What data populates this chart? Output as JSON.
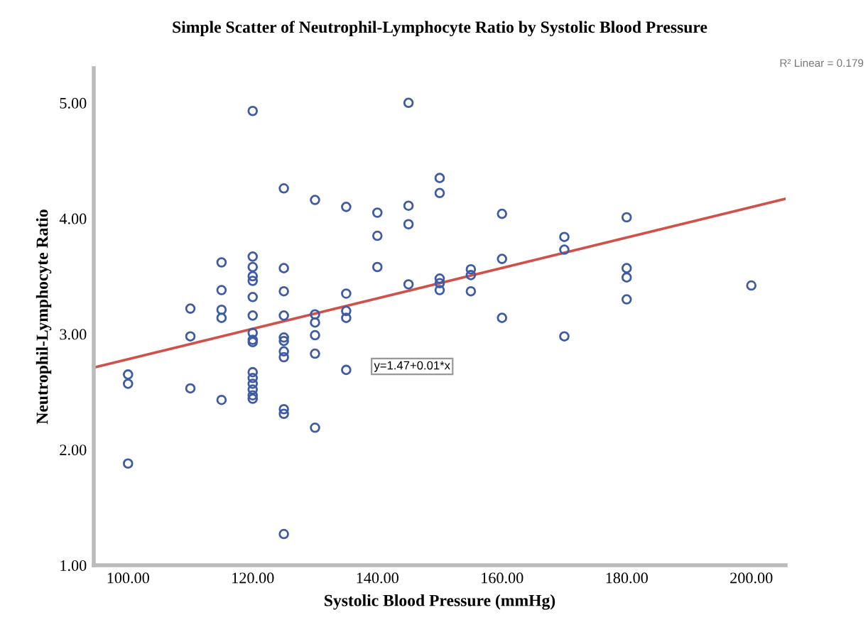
{
  "chart_data": {
    "type": "scatter",
    "title": "Simple Scatter of Neutrophil-Lymphocyte Ratio by Systolic Blood Pressure",
    "xlabel": "Systolic Blood Pressure (mmHg)",
    "ylabel": "Neutrophil-Lymphocyte Ratio",
    "xlim": [
      94.5,
      205.5
    ],
    "ylim": [
      1,
      5.3
    ],
    "xticks": [
      {
        "value": 100,
        "label": "100.00"
      },
      {
        "value": 120,
        "label": "120.00"
      },
      {
        "value": 140,
        "label": "140.00"
      },
      {
        "value": 160,
        "label": "160.00"
      },
      {
        "value": 180,
        "label": "180.00"
      },
      {
        "value": 200,
        "label": "200.00"
      }
    ],
    "yticks": [
      {
        "value": 1,
        "label": "1.00"
      },
      {
        "value": 2,
        "label": "2.00"
      },
      {
        "value": 3,
        "label": "3.00"
      },
      {
        "value": 4,
        "label": "4.00"
      },
      {
        "value": 5,
        "label": "5.00"
      }
    ],
    "grid": false,
    "legend": false,
    "marker": "circle",
    "series": [
      {
        "color": "#3f5ba6",
        "x": [
          100,
          100,
          100,
          110,
          110,
          110,
          115,
          115,
          115,
          115,
          115,
          120,
          120,
          120,
          120,
          120,
          120,
          120,
          120,
          120,
          120,
          120,
          120,
          120,
          120,
          120,
          120,
          125,
          125,
          125,
          125,
          125,
          125,
          125,
          125,
          125,
          125,
          125,
          130,
          130,
          130,
          130,
          130,
          130,
          135,
          135,
          135,
          135,
          135,
          140,
          140,
          140,
          145,
          145,
          145,
          145,
          150,
          150,
          150,
          150,
          150,
          155,
          155,
          155,
          160,
          160,
          160,
          170,
          170,
          170,
          180,
          180,
          180,
          180,
          200
        ],
        "values": [
          2.65,
          2.57,
          1.88,
          3.22,
          2.98,
          2.53,
          3.62,
          3.38,
          3.21,
          3.14,
          2.43,
          4.93,
          3.67,
          3.58,
          3.5,
          3.46,
          3.32,
          3.16,
          3.01,
          2.95,
          2.93,
          2.67,
          2.62,
          2.57,
          2.52,
          2.47,
          2.44,
          4.26,
          3.57,
          3.37,
          3.16,
          2.94,
          2.85,
          2.8,
          2.35,
          2.31,
          1.27,
          2.97,
          4.16,
          3.17,
          3.1,
          2.99,
          2.83,
          2.19,
          4.1,
          3.35,
          3.2,
          3.14,
          2.69,
          4.05,
          3.85,
          3.58,
          5.0,
          4.11,
          3.95,
          3.43,
          4.35,
          4.22,
          3.48,
          3.44,
          3.38,
          3.56,
          3.51,
          3.37,
          4.04,
          3.65,
          3.14,
          3.84,
          3.73,
          2.98,
          4.01,
          3.57,
          3.49,
          3.3,
          3.42
        ]
      },
      {
        "type": "line",
        "color": "#d0504a",
        "marker": "none",
        "line_style": "solid",
        "x": [
          94.5,
          205.5
        ],
        "values": [
          2.71,
          4.17
        ]
      }
    ],
    "annotations": [
      "y=1.47+0.01*x",
      "R² Linear = 0.179"
    ]
  }
}
